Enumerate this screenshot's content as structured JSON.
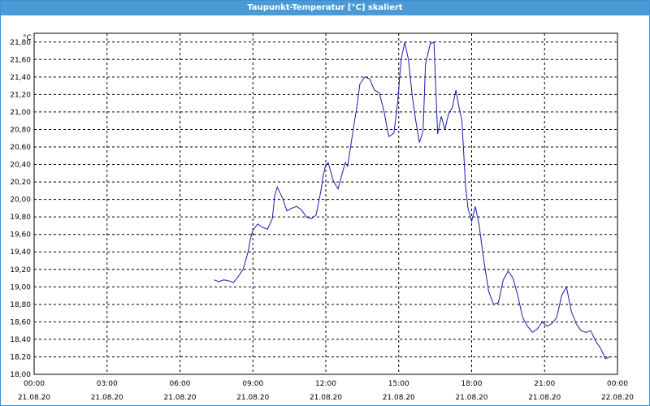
{
  "window": {
    "title": "Taupunkt-Temperatur [°C] skaliert"
  },
  "chart_data": {
    "type": "line",
    "title": "Taupunkt-Temperatur [°C] skaliert",
    "ylabel": "°C",
    "xlabel": "",
    "ylim": [
      18.0,
      21.9
    ],
    "y_ticks": [
      "18,00",
      "18,20",
      "18,40",
      "18,60",
      "18,80",
      "19,00",
      "19,20",
      "19,40",
      "19,60",
      "19,80",
      "20,00",
      "20,20",
      "20,40",
      "20,60",
      "20,80",
      "21,00",
      "21,20",
      "21,40",
      "21,60",
      "21,80"
    ],
    "x_range_hours": [
      0,
      24
    ],
    "x_ticks": [
      {
        "time": "00:00",
        "date": "21.08.20"
      },
      {
        "time": "03:00",
        "date": "21.08.20"
      },
      {
        "time": "06:00",
        "date": "21.08.20"
      },
      {
        "time": "09:00",
        "date": "21.08.20"
      },
      {
        "time": "12:00",
        "date": "21.08.20"
      },
      {
        "time": "15:00",
        "date": "21.08.20"
      },
      {
        "time": "18:00",
        "date": "21.08.20"
      },
      {
        "time": "21:00",
        "date": "21.08.20"
      },
      {
        "time": "00:00",
        "date": "22.08.20"
      }
    ],
    "grid": true,
    "line_color": "#1a1aa8",
    "series": [
      {
        "x": [
          7.4,
          7.6,
          7.8,
          8.0,
          8.2,
          8.4,
          8.6,
          8.8,
          8.9,
          9.0,
          9.2,
          9.4,
          9.6,
          9.8,
          9.9,
          10.0,
          10.2,
          10.4,
          10.6,
          10.8,
          11.0,
          11.2,
          11.4,
          11.6,
          11.8,
          11.9,
          12.0,
          12.1,
          12.3,
          12.5,
          12.6,
          12.8,
          12.9,
          13.1,
          13.3,
          13.4,
          13.6,
          13.8,
          14.0,
          14.2,
          14.4,
          14.5,
          14.6,
          14.8,
          14.95,
          15.1,
          15.25,
          15.4,
          15.55,
          15.7,
          15.85,
          16.0,
          16.1,
          16.3,
          16.45,
          16.6,
          16.75,
          16.9,
          17.05,
          17.2,
          17.35,
          17.45,
          17.6,
          17.75,
          17.85,
          18.0,
          18.15,
          18.3,
          18.5,
          18.7,
          18.9,
          19.1,
          19.3,
          19.5,
          19.7,
          19.9,
          20.1,
          20.3,
          20.5,
          20.7,
          20.9,
          21.1,
          21.3,
          21.5,
          21.7,
          21.9,
          22.1,
          22.3,
          22.5,
          22.7,
          22.9,
          23.1,
          23.3,
          23.5,
          23.7
        ],
        "y": [
          19.08,
          19.06,
          19.08,
          19.07,
          19.05,
          19.12,
          19.2,
          19.4,
          19.55,
          19.65,
          19.72,
          19.68,
          19.66,
          19.78,
          20.05,
          20.14,
          20.03,
          19.87,
          19.9,
          19.92,
          19.88,
          19.8,
          19.78,
          19.82,
          20.1,
          20.28,
          20.4,
          20.42,
          20.22,
          20.12,
          20.22,
          20.42,
          20.38,
          20.75,
          21.1,
          21.32,
          21.4,
          21.38,
          21.25,
          21.22,
          21.0,
          20.85,
          20.72,
          20.76,
          21.1,
          21.6,
          21.8,
          21.6,
          21.2,
          20.9,
          20.65,
          20.78,
          21.55,
          21.78,
          21.8,
          20.75,
          20.95,
          20.8,
          20.98,
          21.05,
          21.25,
          21.1,
          20.9,
          20.15,
          19.9,
          19.75,
          19.92,
          19.72,
          19.3,
          18.95,
          18.8,
          18.82,
          19.08,
          19.18,
          19.1,
          18.9,
          18.65,
          18.55,
          18.48,
          18.52,
          18.6,
          18.55,
          18.58,
          18.65,
          18.9,
          19.0,
          18.72,
          18.58,
          18.5,
          18.48,
          18.5,
          18.38,
          18.3,
          18.18,
          18.2
        ]
      }
    ]
  }
}
